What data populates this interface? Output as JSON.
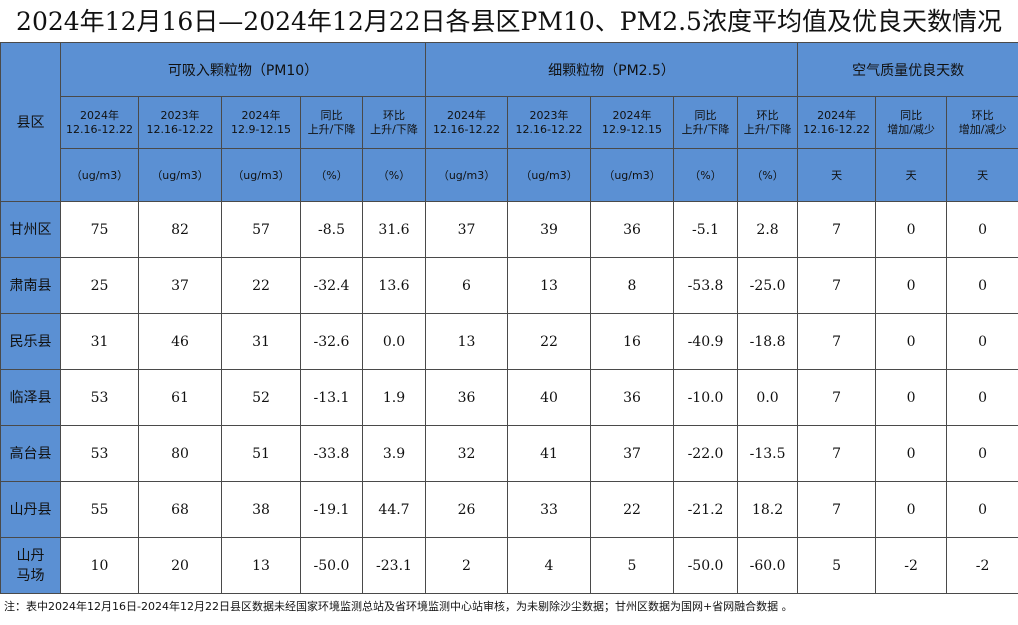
{
  "title": "2024年12月16日—2024年12月22日各县区PM10、PM2.5浓度平均值及优良天数情况",
  "table": {
    "corner": "县区",
    "groups": [
      {
        "label": "可吸入颗粒物（PM10）",
        "span": 5
      },
      {
        "label": "细颗粒物（PM2.5）",
        "span": 5
      },
      {
        "label": "空气质量优良天数",
        "span": 3
      }
    ],
    "subheaders": [
      [
        "2024年",
        "12.16-12.22"
      ],
      [
        "2023年",
        "12.16-12.22"
      ],
      [
        "2024年",
        "12.9-12.15"
      ],
      [
        "同比",
        "上升/下降"
      ],
      [
        "环比",
        "上升/下降"
      ],
      [
        "2024年",
        "12.16-12.22"
      ],
      [
        "2023年",
        "12.16-12.22"
      ],
      [
        "2024年",
        "12.9-12.15"
      ],
      [
        "同比",
        "上升/下降"
      ],
      [
        "环比",
        "上升/下降"
      ],
      [
        "2024年",
        "12.16-12.22"
      ],
      [
        "同比",
        "增加/减少"
      ],
      [
        "环比",
        "增加/减少"
      ]
    ],
    "units": [
      "（ug/m3）",
      "（ug/m3）",
      "（ug/m3）",
      "（%）",
      "（%）",
      "（ug/m3）",
      "（ug/m3）",
      "（ug/m3）",
      "（%）",
      "（%）",
      "天",
      "天",
      "天"
    ],
    "rows": [
      {
        "name": [
          "甘州区"
        ],
        "values": [
          "75",
          "82",
          "57",
          "-8.5",
          "31.6",
          "37",
          "39",
          "36",
          "-5.1",
          "2.8",
          "7",
          "0",
          "0"
        ]
      },
      {
        "name": [
          "肃南县"
        ],
        "values": [
          "25",
          "37",
          "22",
          "-32.4",
          "13.6",
          "6",
          "13",
          "8",
          "-53.8",
          "-25.0",
          "7",
          "0",
          "0"
        ]
      },
      {
        "name": [
          "民乐县"
        ],
        "values": [
          "31",
          "46",
          "31",
          "-32.6",
          "0.0",
          "13",
          "22",
          "16",
          "-40.9",
          "-18.8",
          "7",
          "0",
          "0"
        ]
      },
      {
        "name": [
          "临泽县"
        ],
        "values": [
          "53",
          "61",
          "52",
          "-13.1",
          "1.9",
          "36",
          "40",
          "36",
          "-10.0",
          "0.0",
          "7",
          "0",
          "0"
        ]
      },
      {
        "name": [
          "高台县"
        ],
        "values": [
          "53",
          "80",
          "51",
          "-33.8",
          "3.9",
          "32",
          "41",
          "37",
          "-22.0",
          "-13.5",
          "7",
          "0",
          "0"
        ]
      },
      {
        "name": [
          "山丹县"
        ],
        "values": [
          "55",
          "68",
          "38",
          "-19.1",
          "44.7",
          "26",
          "33",
          "22",
          "-21.2",
          "18.2",
          "7",
          "0",
          "0"
        ]
      },
      {
        "name": [
          "山丹",
          "马场"
        ],
        "values": [
          "10",
          "20",
          "13",
          "-50.0",
          "-23.1",
          "2",
          "4",
          "5",
          "-50.0",
          "-60.0",
          "5",
          "-2",
          "-2"
        ]
      }
    ]
  },
  "note": "注：表中2024年12月16日-2024年12月22日县区数据未经国家环境监测总站及省环境监测中心站审核，为未剔除沙尘数据；甘州区数据为国网+省网融合数据 。"
}
